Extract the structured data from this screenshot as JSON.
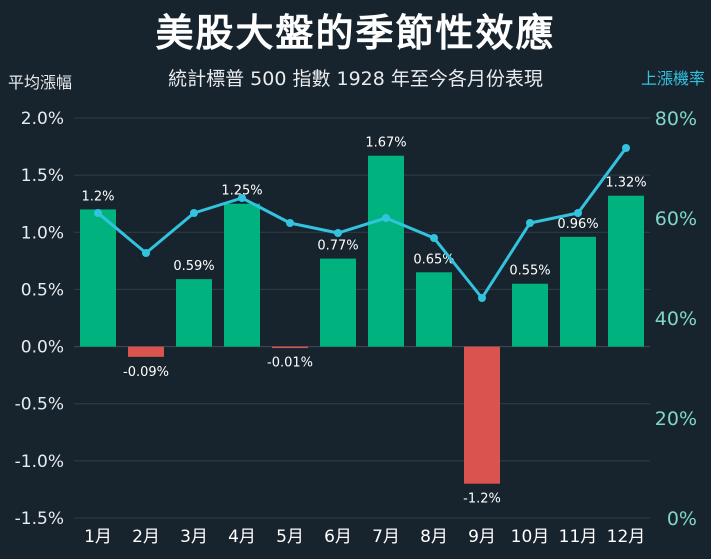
{
  "title": "美股大盤的季節性效應",
  "subtitle": "統計標普 500 指數 1928 年至今各月份表現",
  "colors": {
    "background": "#17232d",
    "positive_bar": "#00b37e",
    "negative_bar": "#d9534f",
    "line": "#32c3df",
    "right_axis_ticks": "#7fd6c9",
    "grid": "#2f3e49"
  },
  "chart_data": {
    "type": "bar",
    "categories": [
      "1月",
      "2月",
      "3月",
      "4月",
      "5月",
      "6月",
      "7月",
      "8月",
      "9月",
      "10月",
      "11月",
      "12月"
    ],
    "series": [
      {
        "name": "平均漲幅",
        "type": "bar",
        "axis": "left",
        "values": [
          1.2,
          -0.09,
          0.59,
          1.25,
          -0.01,
          0.77,
          1.67,
          0.65,
          -1.2,
          0.55,
          0.96,
          1.32
        ],
        "labels": [
          "1.2%",
          "-0.09%",
          "0.59%",
          "1.25%",
          "-0.01%",
          "0.77%",
          "1.67%",
          "0.65%",
          "-1.2%",
          "0.55%",
          "0.96%",
          "1.32%"
        ]
      },
      {
        "name": "上漲機率",
        "type": "line",
        "axis": "right",
        "values": [
          61,
          53,
          61,
          64,
          59,
          57,
          60,
          56,
          44,
          59,
          61,
          74
        ]
      }
    ],
    "ylabel": "平均漲幅",
    "y2label": "上漲機率",
    "ylim": [
      -1.5,
      2.0
    ],
    "y2lim": [
      0,
      80
    ],
    "yticks": [
      "2.0%",
      "1.5%",
      "1.0%",
      "0.5%",
      "0.0%",
      "-0.5%",
      "-1.0%",
      "-1.5%"
    ],
    "y2ticks": [
      "80%",
      "60%",
      "40%",
      "20%",
      "0%"
    ],
    "grid": true
  }
}
